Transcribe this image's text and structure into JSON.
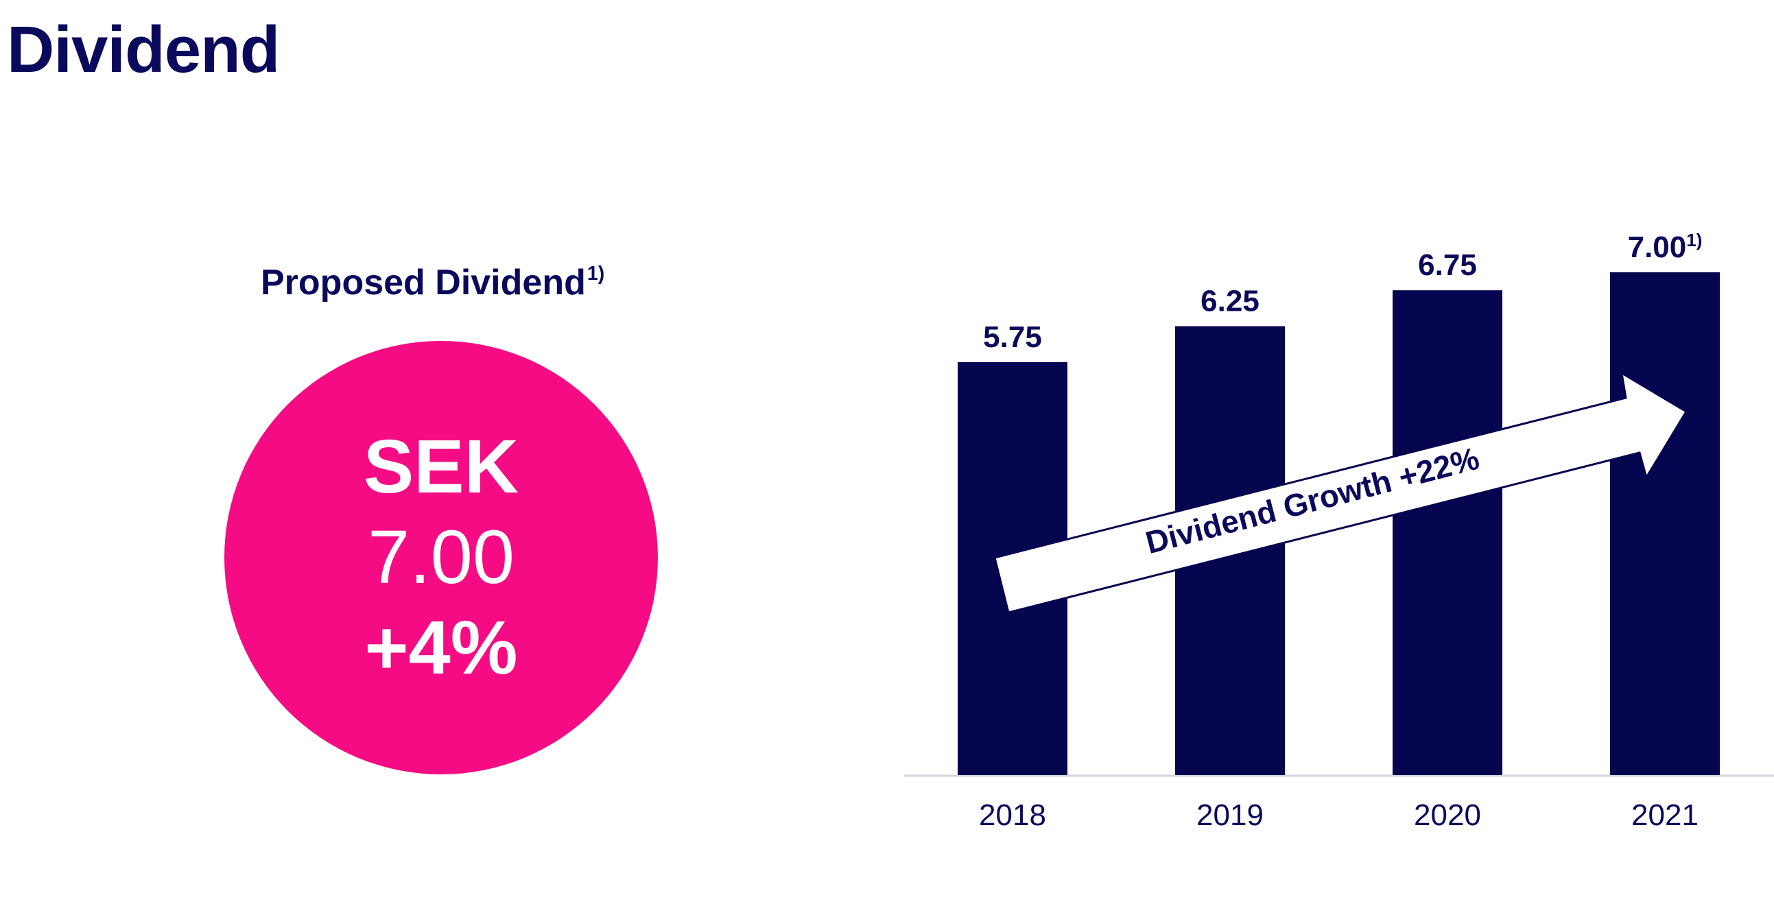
{
  "page": {
    "title": "Dividend"
  },
  "kpi": {
    "caption": "Proposed Dividend",
    "caption_footnote": "1)",
    "line1": "SEK",
    "line2": "7.00",
    "line3": "+4%",
    "circle_color": "#f50b83"
  },
  "chart_data": {
    "type": "bar",
    "categories": [
      "2018",
      "2019",
      "2020",
      "2021"
    ],
    "values": [
      5.75,
      6.25,
      6.75,
      7.0
    ],
    "value_labels": [
      "5.75",
      "6.25",
      "6.75",
      "7.00"
    ],
    "value_footnotes": [
      "",
      "",
      "",
      "1)"
    ],
    "ylim": [
      0,
      7.0
    ],
    "bar_color": "#06054f",
    "annotation": "Dividend Growth +22%",
    "grid": false,
    "legend": "none"
  }
}
